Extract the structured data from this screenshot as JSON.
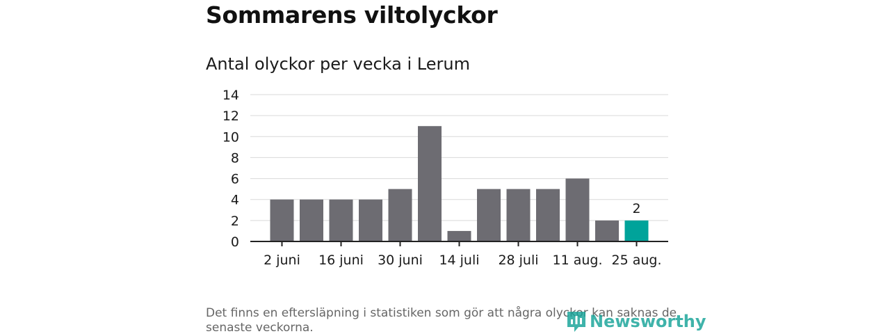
{
  "header": {
    "title": "Sommarens viltolyckor",
    "subtitle": "Antal olyckor per vecka i Lerum"
  },
  "footnote": "Det finns en eftersläpning i statistiken som gör att några olyckor kan saknas de senaste veckorna.",
  "logo": {
    "text": "Newsworthy",
    "icon": "newsworthy-logo-icon"
  },
  "colors": {
    "bar": "#6d6c72",
    "highlight": "#00a39a",
    "grid": "#d9d9d9",
    "axis": "#222222",
    "text": "#1a1a1a",
    "logo": "#16a398"
  },
  "chart_data": {
    "type": "bar",
    "categories": [
      "2 juni",
      "",
      "16 juni",
      "",
      "30 juni",
      "",
      "14 juli",
      "",
      "28 juli",
      "",
      "11 aug.",
      "",
      "25 aug."
    ],
    "values": [
      4,
      4,
      4,
      4,
      5,
      11,
      1,
      5,
      5,
      5,
      6,
      2,
      2
    ],
    "highlight_index": 12,
    "data_labels": [
      {
        "index": 12,
        "text": "2"
      }
    ],
    "y_ticks": [
      "0",
      "2",
      "4",
      "6",
      "8",
      "10",
      "12",
      "14"
    ],
    "x_tick_labels": [
      "2 juni",
      "16 juni",
      "30 juni",
      "14 juli",
      "28 juli",
      "11 aug.",
      "25 aug."
    ],
    "ylim": [
      0,
      14
    ],
    "grid": true,
    "legend": "none"
  }
}
